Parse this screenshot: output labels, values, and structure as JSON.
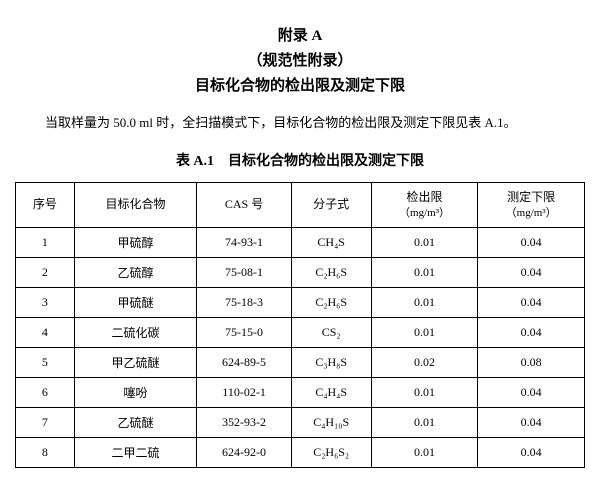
{
  "header": {
    "line1": "附录 A",
    "line2": "（规范性附录）",
    "line3": "目标化合物的检出限及测定下限"
  },
  "intro": "当取样量为 50.0 ml 时，全扫描模式下，目标化合物的检出限及测定下限见表 A.1。",
  "tableCaption": "表 A.1　目标化合物的检出限及测定下限",
  "columns": {
    "c0": "序号",
    "c1": "目标化合物",
    "c2": "CAS 号",
    "c3": "分子式",
    "c4_label": "检出限",
    "c4_unit": "（mg/m³）",
    "c5_label": "测定下限",
    "c5_unit": "（mg/m³）"
  },
  "rows": [
    {
      "idx": "1",
      "name": "甲硫醇",
      "cas": "74-93-1",
      "formula": "CH₄S",
      "lod": "0.01",
      "loq": "0.04"
    },
    {
      "idx": "2",
      "name": "乙硫醇",
      "cas": "75-08-1",
      "formula": "C₂H₆S",
      "lod": "0.01",
      "loq": "0.04"
    },
    {
      "idx": "3",
      "name": "甲硫醚",
      "cas": "75-18-3",
      "formula": "C₂H₆S",
      "lod": "0.01",
      "loq": "0.04"
    },
    {
      "idx": "4",
      "name": "二硫化碳",
      "cas": "75-15-0",
      "formula": "CS₂",
      "lod": "0.01",
      "loq": "0.04"
    },
    {
      "idx": "5",
      "name": "甲乙硫醚",
      "cas": "624-89-5",
      "formula": "C₃H₈S",
      "lod": "0.02",
      "loq": "0.08"
    },
    {
      "idx": "6",
      "name": "噻吩",
      "cas": "110-02-1",
      "formula": "C₄H₄S",
      "lod": "0.01",
      "loq": "0.04"
    },
    {
      "idx": "7",
      "name": "乙硫醚",
      "cas": "352-93-2",
      "formula": "C₄H₁₀S",
      "lod": "0.01",
      "loq": "0.04"
    },
    {
      "idx": "8",
      "name": "二甲二硫",
      "cas": "624-92-0",
      "formula": "C₂H₆S₂",
      "lod": "0.01",
      "loq": "0.04"
    }
  ]
}
